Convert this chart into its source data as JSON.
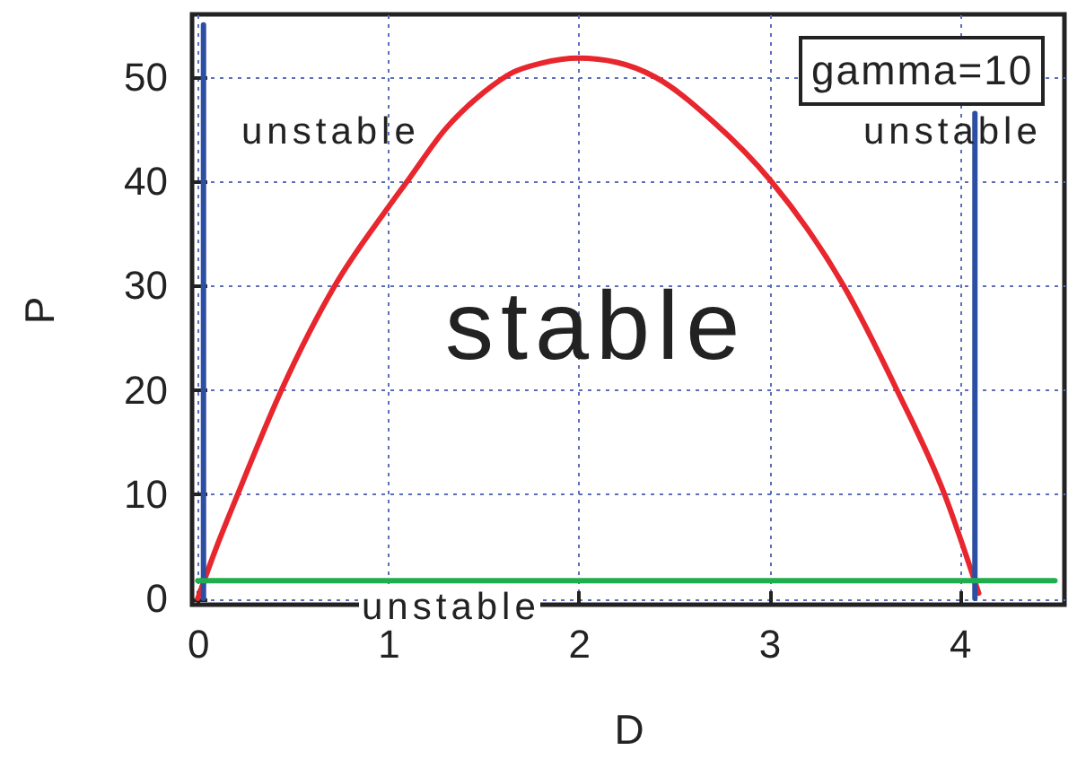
{
  "chart_data": {
    "type": "line",
    "xlabel": "D",
    "ylabel": "P",
    "xlim": [
      -0.03,
      4.55
    ],
    "ylim": [
      -0.6,
      56
    ],
    "xticks": [
      0,
      1,
      2,
      3,
      4
    ],
    "yticks": [
      0,
      10,
      20,
      30,
      40,
      50
    ],
    "grid": true,
    "series": [
      {
        "color": "#e8262d",
        "x": [
          0,
          0.1,
          0.21,
          0.44,
          0.72,
          1.0,
          1.1,
          1.3,
          1.5,
          1.65,
          1.8,
          2.0,
          2.2,
          2.4,
          2.7,
          3.01,
          3.39,
          3.67,
          3.92,
          4.1
        ],
        "values": [
          0,
          5,
          10,
          20,
          30,
          37.5,
          40,
          45,
          48.5,
          50.4,
          51.3,
          51.8,
          51.4,
          50,
          45.8,
          40,
          30,
          20,
          10,
          0.5
        ]
      },
      {
        "color": "#2c4ea3",
        "x": [
          0.03,
          0.03
        ],
        "values": [
          0,
          55
        ]
      },
      {
        "color": "#2c4ea3",
        "x": [
          4.08,
          4.08
        ],
        "values": [
          0,
          46.5
        ]
      },
      {
        "color": "#1fae4e",
        "x": [
          0,
          4.5
        ],
        "values": [
          1.7,
          1.7
        ]
      }
    ],
    "annotations": [
      "unstable",
      "unstable",
      "unstable",
      "stable",
      "gamma=10"
    ]
  }
}
